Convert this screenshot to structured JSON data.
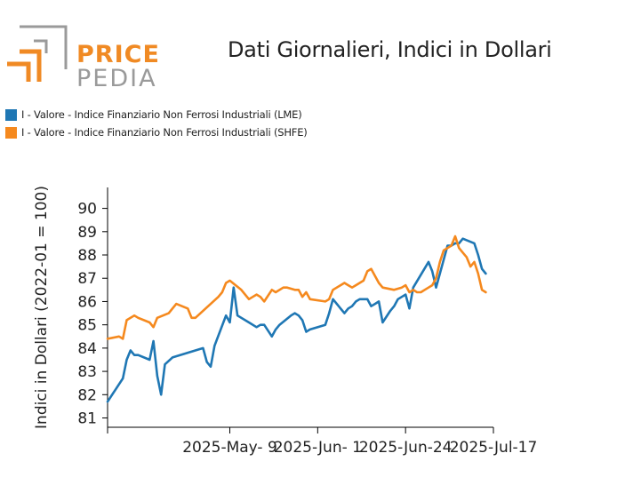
{
  "logo": {
    "line1": "PRICE",
    "line2": "PEDIA",
    "orange": "#f08a24",
    "gray": "#9a9a9a"
  },
  "chart_data": {
    "type": "line",
    "title": "Dati Giornalieri, Indici in Dollari",
    "xlabel": "",
    "ylabel": "Indici in Dollari (2022-01 = 100)",
    "ylim": [
      80.6,
      90.9
    ],
    "xlim": [
      "2025-04-07",
      "2025-07-17"
    ],
    "yticks": [
      81,
      82,
      83,
      84,
      85,
      86,
      87,
      88,
      89,
      90
    ],
    "xticks": [
      "2025-May- 9",
      "2025-Jun- 1",
      "2025-Jun-24",
      "2025-Jul-17"
    ],
    "xtick_dates": [
      "2025-05-09",
      "2025-06-01",
      "2025-06-24",
      "2025-07-17"
    ],
    "grid": false,
    "legend_position": "top-left",
    "series": [
      {
        "name": "I - Valore - Indice Finanziario Non Ferrosi Industriali (LME)",
        "color": "#1f77b4",
        "x": [
          "2025-04-07",
          "2025-04-11",
          "2025-04-12",
          "2025-04-13",
          "2025-04-14",
          "2025-04-15",
          "2025-04-18",
          "2025-04-19",
          "2025-04-20",
          "2025-04-21",
          "2025-04-22",
          "2025-04-24",
          "2025-05-02",
          "2025-05-03",
          "2025-05-04",
          "2025-05-05",
          "2025-05-08",
          "2025-05-09",
          "2025-05-10",
          "2025-05-11",
          "2025-05-14",
          "2025-05-16",
          "2025-05-17",
          "2025-05-18",
          "2025-05-20",
          "2025-05-21",
          "2025-05-22",
          "2025-05-25",
          "2025-05-26",
          "2025-05-27",
          "2025-05-28",
          "2025-05-29",
          "2025-05-30",
          "2025-06-03",
          "2025-06-04",
          "2025-06-05",
          "2025-06-08",
          "2025-06-09",
          "2025-06-10",
          "2025-06-11",
          "2025-06-12",
          "2025-06-14",
          "2025-06-15",
          "2025-06-16",
          "2025-06-17",
          "2025-06-18",
          "2025-06-20",
          "2025-06-21",
          "2025-06-22",
          "2025-06-23",
          "2025-06-24",
          "2025-06-25",
          "2025-06-26",
          "2025-06-30",
          "2025-07-01",
          "2025-07-02",
          "2025-07-05",
          "2025-07-06",
          "2025-07-07",
          "2025-07-08",
          "2025-07-09",
          "2025-07-12",
          "2025-07-13",
          "2025-07-14",
          "2025-07-15"
        ],
        "y": [
          81.7,
          82.7,
          83.5,
          83.9,
          83.7,
          83.7,
          83.5,
          84.3,
          82.8,
          82.0,
          83.3,
          83.6,
          84.0,
          83.4,
          83.2,
          84.1,
          85.4,
          85.1,
          86.6,
          85.4,
          85.1,
          84.9,
          85.0,
          85.0,
          84.5,
          84.8,
          85.0,
          85.4,
          85.5,
          85.4,
          85.2,
          84.7,
          84.8,
          85.0,
          85.5,
          86.1,
          85.5,
          85.7,
          85.8,
          86.0,
          86.1,
          86.1,
          85.8,
          85.9,
          86.0,
          85.1,
          85.6,
          85.8,
          86.1,
          86.2,
          86.3,
          85.7,
          86.6,
          87.7,
          87.3,
          86.6,
          88.4,
          88.4,
          88.5,
          88.5,
          88.7,
          88.5,
          88.0,
          87.4,
          87.2
        ]
      },
      {
        "name": "I - Valore - Indice Finanziario Non Ferrosi Industriali (SHFE)",
        "color": "#f5891e",
        "x": [
          "2025-04-07",
          "2025-04-10",
          "2025-04-11",
          "2025-04-12",
          "2025-04-14",
          "2025-04-15",
          "2025-04-18",
          "2025-04-19",
          "2025-04-20",
          "2025-04-23",
          "2025-04-24",
          "2025-04-25",
          "2025-04-28",
          "2025-04-29",
          "2025-04-30",
          "2025-05-06",
          "2025-05-07",
          "2025-05-08",
          "2025-05-09",
          "2025-05-12",
          "2025-05-13",
          "2025-05-14",
          "2025-05-15",
          "2025-05-16",
          "2025-05-17",
          "2025-05-18",
          "2025-05-20",
          "2025-05-21",
          "2025-05-23",
          "2025-05-24",
          "2025-05-26",
          "2025-05-27",
          "2025-05-28",
          "2025-05-29",
          "2025-05-30",
          "2025-06-03",
          "2025-06-04",
          "2025-06-05",
          "2025-06-08",
          "2025-06-09",
          "2025-06-10",
          "2025-06-11",
          "2025-06-12",
          "2025-06-13",
          "2025-06-14",
          "2025-06-15",
          "2025-06-16",
          "2025-06-17",
          "2025-06-18",
          "2025-06-21",
          "2025-06-23",
          "2025-06-24",
          "2025-06-25",
          "2025-06-26",
          "2025-06-27",
          "2025-06-28",
          "2025-06-29",
          "2025-06-30",
          "2025-07-01",
          "2025-07-02",
          "2025-07-03",
          "2025-07-04",
          "2025-07-05",
          "2025-07-06",
          "2025-07-07",
          "2025-07-08",
          "2025-07-09",
          "2025-07-10",
          "2025-07-11",
          "2025-07-12",
          "2025-07-13",
          "2025-07-14",
          "2025-07-15"
        ],
        "y": [
          84.4,
          84.5,
          84.4,
          85.2,
          85.4,
          85.3,
          85.1,
          84.9,
          85.3,
          85.5,
          85.7,
          85.9,
          85.7,
          85.3,
          85.3,
          86.2,
          86.4,
          86.8,
          86.9,
          86.5,
          86.3,
          86.1,
          86.2,
          86.3,
          86.2,
          86.0,
          86.5,
          86.4,
          86.6,
          86.6,
          86.5,
          86.5,
          86.2,
          86.4,
          86.1,
          86.0,
          86.1,
          86.5,
          86.8,
          86.7,
          86.6,
          86.7,
          86.8,
          86.9,
          87.3,
          87.4,
          87.1,
          86.8,
          86.6,
          86.5,
          86.6,
          86.7,
          86.4,
          86.5,
          86.4,
          86.4,
          86.5,
          86.6,
          86.7,
          87.0,
          87.7,
          88.2,
          88.3,
          88.4,
          88.8,
          88.3,
          88.1,
          87.9,
          87.5,
          87.7,
          87.2,
          86.5,
          86.4
        ]
      }
    ]
  }
}
